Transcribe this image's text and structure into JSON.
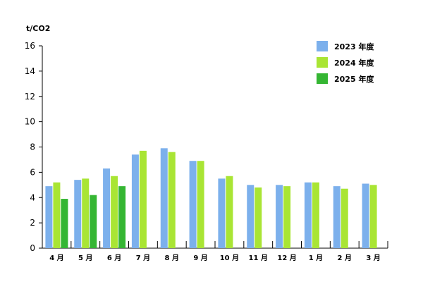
{
  "chart_data": {
    "type": "bar",
    "ylabel": "t/CO2",
    "ylim": [
      0,
      16
    ],
    "yticks": [
      0,
      2,
      4,
      6,
      8,
      10,
      12,
      14,
      16
    ],
    "grid": false,
    "legend_position": "top-right",
    "categories": [
      "4 月",
      "5 月",
      "6 月",
      "7 月",
      "8 月",
      "9 月",
      "10 月",
      "11 月",
      "12 月",
      "1 月",
      "2 月",
      "3 月"
    ],
    "series": [
      {
        "name": "2023 年度",
        "color": "#7cb0ec",
        "values": [
          4.9,
          5.4,
          6.3,
          7.4,
          7.9,
          6.9,
          5.5,
          5.0,
          5.0,
          5.2,
          4.9,
          5.1
        ]
      },
      {
        "name": "2024 年度",
        "color": "#a9e534",
        "values": [
          5.2,
          5.5,
          5.7,
          7.7,
          7.6,
          6.9,
          5.7,
          4.8,
          4.9,
          5.2,
          4.7,
          5.0
        ]
      },
      {
        "name": "2025 年度",
        "color": "#35b633",
        "values": [
          3.9,
          4.2,
          4.9,
          null,
          null,
          null,
          null,
          null,
          null,
          null,
          null,
          null
        ]
      }
    ]
  }
}
